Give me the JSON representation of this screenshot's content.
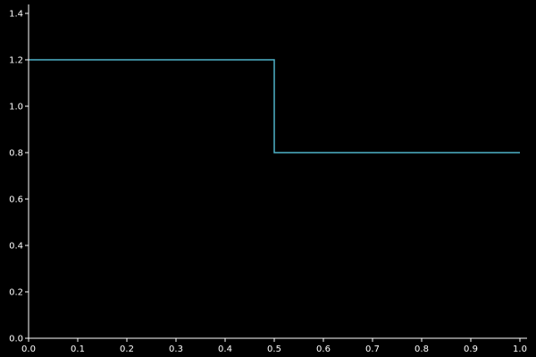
{
  "chart_data": {
    "type": "line",
    "title": "",
    "xlabel": "",
    "ylabel": "",
    "xlim": [
      0.0,
      1.0
    ],
    "ylim": [
      0.0,
      1.4
    ],
    "xticks": [
      0.0,
      0.1,
      0.2,
      0.3,
      0.4,
      0.5,
      0.6,
      0.7,
      0.8,
      0.9,
      1.0
    ],
    "xtick_labels": [
      "0.0",
      "0.1",
      "0.2",
      "0.3",
      "0.4",
      "0.5",
      "0.6",
      "0.7",
      "0.8",
      "0.9",
      "1.0"
    ],
    "yticks": [
      0.0,
      0.2,
      0.4,
      0.6,
      0.8,
      1.0,
      1.2,
      1.4
    ],
    "ytick_labels": [
      "0.0",
      "0.2",
      "0.4",
      "0.6",
      "0.8",
      "1.0",
      "1.2",
      "1.4"
    ],
    "grid": false,
    "legend": "none",
    "background_color": "#000000",
    "axis_color": "#ffffff",
    "series": [
      {
        "step": true,
        "color": "#4fb3c9",
        "x": [
          0.0,
          0.5,
          0.5,
          1.0
        ],
        "y": [
          1.2,
          1.2,
          0.8,
          0.8
        ]
      }
    ]
  }
}
